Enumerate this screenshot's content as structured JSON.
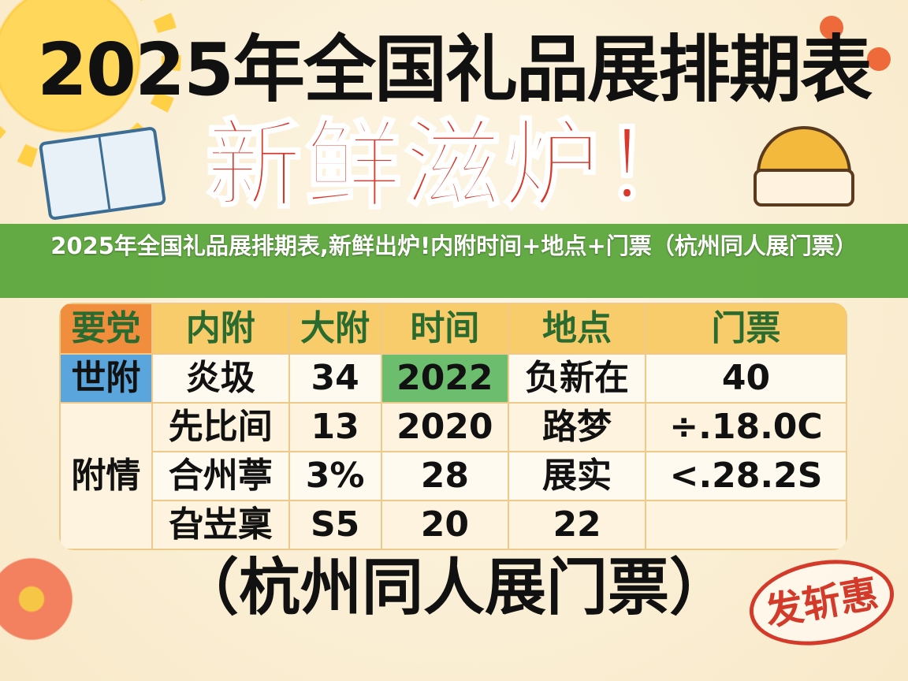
{
  "poster": {
    "title": "2025年全国礼品展排期表",
    "subtitle": "新鲜滋炉！",
    "table": {
      "headers": [
        "要党",
        "内附",
        "大附",
        "时间",
        "地点",
        "门票"
      ],
      "row1": [
        "世附",
        "炎圾",
        "34",
        "2022",
        "负新在",
        "40"
      ],
      "group_label": "附情",
      "rows": [
        [
          "先比间",
          "13",
          "2020",
          "路梦",
          "÷.18.0C"
        ],
        [
          "合州葶",
          "3%",
          "28",
          "展实",
          "<.28.2S"
        ],
        [
          "旮岦稟",
          "S5",
          "20",
          "22",
          ""
        ]
      ]
    },
    "bottom_text": "（杭州同人展门票）",
    "stamp_text": "发斩惠"
  },
  "banner": {
    "caption": "2025年全国礼品展排期表,新鲜出炉!内附时间+地点+门票（杭州同人展门票）"
  },
  "colors": {
    "title": "#111111",
    "subtitle": "#d9382a",
    "banner": "#4ea030",
    "stamp": "#d43a2a"
  }
}
